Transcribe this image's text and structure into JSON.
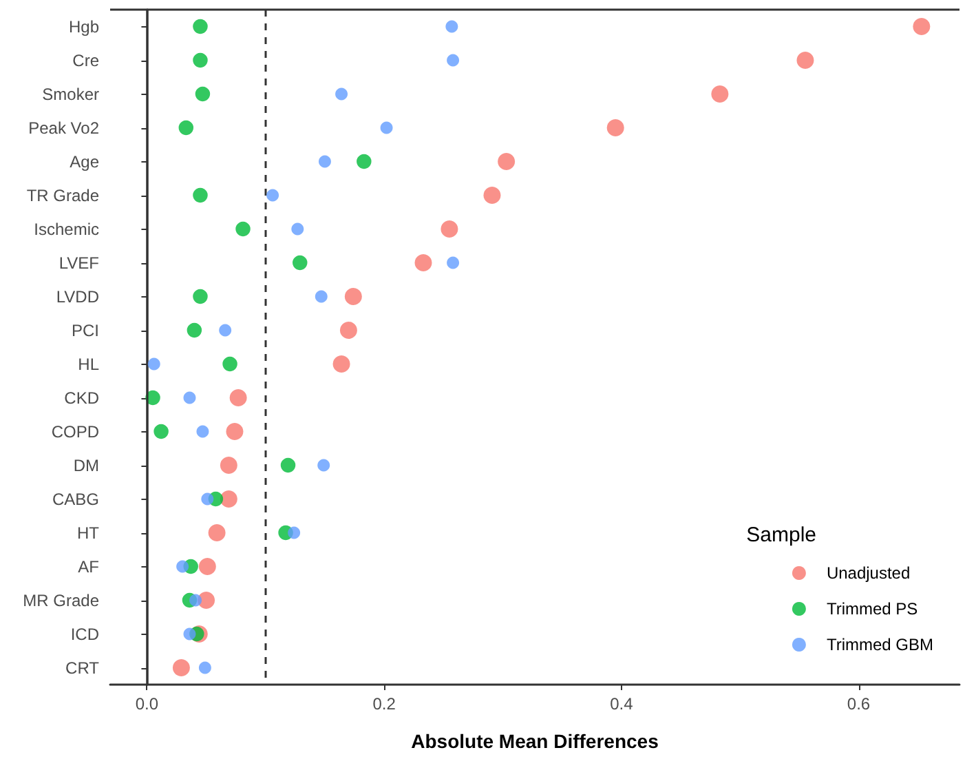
{
  "chart_data": {
    "type": "scatter",
    "orientation": "horizontal",
    "xlabel": "Absolute Mean Differences",
    "legend_title": "Sample",
    "legend": "bottom right",
    "marker": "circle",
    "grid": false,
    "categories": [
      "Hgb",
      "Cre",
      "Smoker",
      "Peak Vo2",
      "Age",
      "TR Grade",
      "Ischemic",
      "LVEF",
      "LVDD",
      "PCI",
      "HL",
      "CKD",
      "COPD",
      "DM",
      "CABG",
      "HT",
      "AF",
      "MR Grade",
      "ICD",
      "CRT"
    ],
    "xlim": [
      -0.031,
      0.685
    ],
    "xticks": [
      {
        "value": 0,
        "label": "0.0"
      },
      0.2,
      0.4,
      0.6
    ],
    "ref_lines": [
      {
        "axis": "x",
        "value": 0,
        "line_style": "solid",
        "color": "#333333"
      },
      {
        "axis": "x",
        "value": 0.1,
        "line_style": "dashed",
        "color": "#333333"
      }
    ],
    "series": [
      {
        "name": "Unadjusted",
        "color": "#f8766d",
        "values": [
          0.653,
          0.555,
          0.483,
          0.395,
          0.303,
          0.291,
          0.255,
          0.233,
          0.174,
          0.17,
          0.164,
          0.077,
          0.074,
          0.069,
          0.069,
          0.059,
          0.051,
          0.05,
          0.044,
          0.029
        ]
      },
      {
        "name": "Trimmed PS",
        "color": "#00ba38",
        "values": [
          0.045,
          0.045,
          0.047,
          0.033,
          0.183,
          0.045,
          0.081,
          0.129,
          0.045,
          0.04,
          0.07,
          0.005,
          0.012,
          0.119,
          0.058,
          0.117,
          0.037,
          0.036,
          0.042,
          null
        ]
      },
      {
        "name": "Trimmed GBM",
        "color": "#619cff",
        "values": [
          0.257,
          0.258,
          0.164,
          0.202,
          0.15,
          0.106,
          0.127,
          0.258,
          0.147,
          0.066,
          0.006,
          0.036,
          0.047,
          0.149,
          0.051,
          0.124,
          0.03,
          0.041,
          0.036,
          0.049
        ]
      }
    ]
  }
}
